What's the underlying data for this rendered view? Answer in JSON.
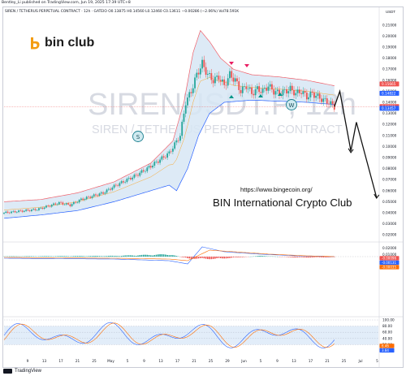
{
  "header": {
    "published": "Bentley_Li published on TradingView.com, Jun 19, 2025 17:39 UTC+8",
    "symbol_line": "SIREN / TETHERUS PERPETUAL CONTRACT · 12h · GATEIO   O0.13875  H0.14560  L0.12460  C0.13611  −0.00286 (−2.06%)  Vol78.591K",
    "currency": "USDT"
  },
  "brand": {
    "logo_text": "bin club"
  },
  "watermark": {
    "ticker": "SIRENUSDT.P, 12h",
    "name": "SIREN / TETHERUS PERPETUAL CONTRACT"
  },
  "annotation": {
    "url": "https://www.bingecoin.org/",
    "club": "BIN International Crypto Club",
    "marker_s": "S",
    "marker_w": "W"
  },
  "footer": {
    "brand": "TradingView"
  },
  "colors": {
    "up": "#26a69a",
    "down": "#ef5350",
    "band_fill": "#d7e6f4",
    "band_line": "#f0606a",
    "stoch_zone": "#dbe8f7",
    "macd_line": "#2962ff",
    "signal_line": "#ff6d00"
  },
  "chart_data": [
    {
      "type": "candlestick",
      "title": "SIRENUSDT.P, 12h",
      "price_axis_labels": [
        "0.21000",
        "0.20000",
        "0.19000",
        "0.18000",
        "0.17000",
        "0.16000",
        "0.15000",
        "0.14000",
        "0.13000",
        "0.12000",
        "0.11000",
        "0.10000",
        "0.09000",
        "0.08000",
        "0.07000",
        "0.06000",
        "0.05000",
        "0.04000",
        "0.03000",
        "0.02000"
      ],
      "price_tags": [
        {
          "label": "0.15665",
          "value": 0.15665,
          "color": "#ef5350"
        },
        {
          "label": "0.14822",
          "value": 0.14822,
          "color": "#2962ff"
        },
        {
          "label": "0.13611",
          "value": 0.13611,
          "color": "#ef5350"
        },
        {
          "label": "0.13457",
          "value": 0.13457,
          "color": "#2962ff"
        }
      ],
      "x_tick_labels": [
        "9",
        "13",
        "17",
        "21",
        "25",
        "May",
        "5",
        "9",
        "13",
        "17",
        "21",
        "25",
        "29",
        "Jun",
        "5",
        "9",
        "13",
        "17",
        "21",
        "25",
        "Jul",
        "5"
      ],
      "close_points": [
        [
          0,
          0.04
        ],
        [
          6,
          0.041
        ],
        [
          12,
          0.042
        ],
        [
          18,
          0.043
        ],
        [
          24,
          0.046
        ],
        [
          30,
          0.049
        ],
        [
          36,
          0.047
        ],
        [
          42,
          0.052
        ],
        [
          48,
          0.055
        ],
        [
          54,
          0.058
        ],
        [
          60,
          0.064
        ],
        [
          66,
          0.069
        ],
        [
          72,
          0.074
        ],
        [
          78,
          0.08
        ],
        [
          84,
          0.087
        ],
        [
          90,
          0.094
        ],
        [
          96,
          0.11
        ],
        [
          99,
          0.14
        ],
        [
          102,
          0.15
        ],
        [
          105,
          0.165
        ],
        [
          108,
          0.175
        ],
        [
          111,
          0.165
        ],
        [
          114,
          0.16
        ],
        [
          117,
          0.163
        ],
        [
          120,
          0.155
        ],
        [
          123,
          0.165
        ],
        [
          126,
          0.16
        ],
        [
          129,
          0.15
        ],
        [
          132,
          0.155
        ],
        [
          135,
          0.148
        ],
        [
          138,
          0.152
        ],
        [
          141,
          0.15
        ],
        [
          144,
          0.155
        ],
        [
          147,
          0.15
        ],
        [
          150,
          0.148
        ],
        [
          153,
          0.15
        ],
        [
          156,
          0.152
        ],
        [
          159,
          0.148
        ],
        [
          162,
          0.15
        ],
        [
          165,
          0.145
        ],
        [
          168,
          0.148
        ],
        [
          171,
          0.145
        ],
        [
          174,
          0.142
        ],
        [
          177,
          0.14
        ],
        [
          180,
          0.136
        ]
      ],
      "band_upper": [
        [
          0,
          0.05
        ],
        [
          20,
          0.052
        ],
        [
          40,
          0.058
        ],
        [
          60,
          0.068
        ],
        [
          80,
          0.085
        ],
        [
          92,
          0.105
        ],
        [
          98,
          0.14
        ],
        [
          103,
          0.185
        ],
        [
          107,
          0.205
        ],
        [
          112,
          0.195
        ],
        [
          118,
          0.18
        ],
        [
          125,
          0.17
        ],
        [
          135,
          0.165
        ],
        [
          150,
          0.163
        ],
        [
          165,
          0.16
        ],
        [
          180,
          0.155
        ]
      ],
      "band_lower": [
        [
          0,
          0.035
        ],
        [
          20,
          0.038
        ],
        [
          40,
          0.042
        ],
        [
          60,
          0.05
        ],
        [
          80,
          0.06
        ],
        [
          90,
          0.065
        ],
        [
          94,
          0.06
        ],
        [
          100,
          0.08
        ],
        [
          106,
          0.11
        ],
        [
          112,
          0.13
        ],
        [
          120,
          0.14
        ],
        [
          135,
          0.142
        ],
        [
          150,
          0.141
        ],
        [
          165,
          0.14
        ],
        [
          180,
          0.138
        ]
      ],
      "projection_path": [
        [
          180,
          0.136
        ],
        [
          183,
          0.15
        ],
        [
          189,
          0.096
        ],
        [
          192,
          0.122
        ],
        [
          203,
          0.054
        ]
      ]
    },
    {
      "type": "histogram",
      "title": "MACD",
      "axis_labels": [
        "0.02000",
        "0.01000"
      ],
      "value_tags": [
        {
          "label": "-0.00096",
          "color": "#ef5350"
        },
        {
          "label": "-0.00131",
          "color": "#2962ff"
        },
        {
          "label": "-0.00035",
          "color": "#ff6d00"
        }
      ]
    },
    {
      "type": "line",
      "title": "Stochastic RSI",
      "axis_labels": [
        "100.00",
        "80.00",
        "60.00",
        "40.00",
        "20.00"
      ],
      "value_tags": [
        {
          "label": "6.46",
          "color": "#ff6d00"
        },
        {
          "label": "3.84",
          "color": "#2962ff"
        }
      ],
      "zone": [
        20,
        80
      ]
    }
  ]
}
